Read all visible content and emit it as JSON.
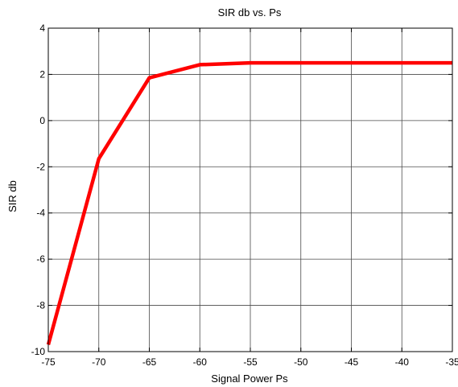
{
  "chart_data": {
    "type": "line",
    "title": "SIR db vs. Ps",
    "xlabel": "Signal Power Ps",
    "ylabel": "SIR db",
    "xlim": [
      -75,
      -35
    ],
    "ylim": [
      -10,
      4
    ],
    "xticks": [
      -75,
      -70,
      -65,
      -60,
      -55,
      -50,
      -45,
      -40,
      -35
    ],
    "yticks": [
      -10,
      -8,
      -6,
      -4,
      -2,
      0,
      2,
      4
    ],
    "grid": true,
    "legend": "none",
    "series": [
      {
        "color": "#ff0000",
        "x": [
          -75,
          -70,
          -65,
          -60,
          -55,
          -50,
          -45,
          -40,
          -35
        ],
        "y": [
          -9.7,
          -1.65,
          1.85,
          2.42,
          2.5,
          2.5,
          2.5,
          2.5,
          2.5
        ]
      }
    ]
  }
}
